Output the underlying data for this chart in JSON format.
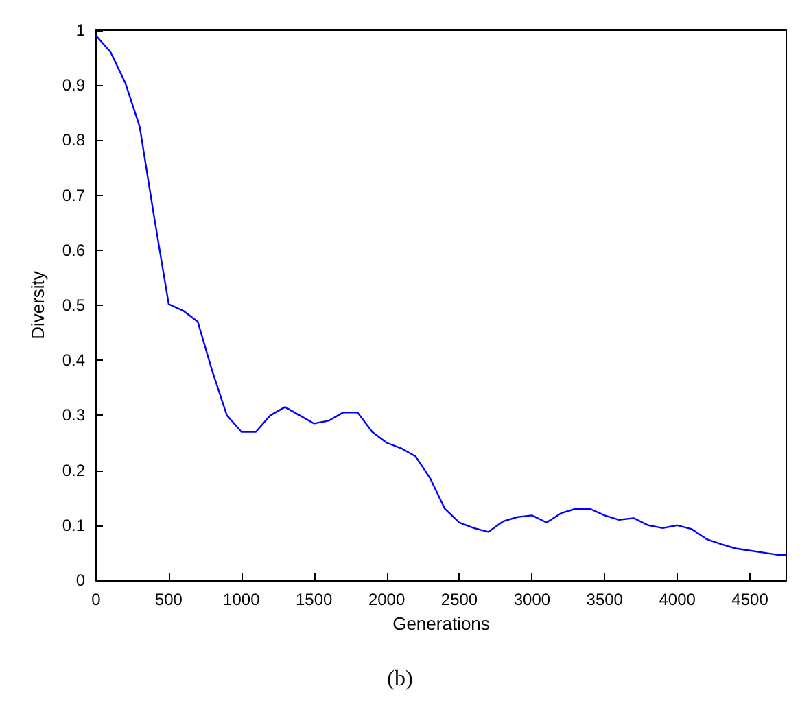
{
  "chart_data": {
    "type": "line",
    "xlabel": "Generations",
    "ylabel": "Diversity",
    "annotations": [
      "(b)"
    ],
    "x": [
      0,
      100,
      200,
      300,
      400,
      500,
      600,
      700,
      800,
      900,
      1000,
      1100,
      1200,
      1300,
      1400,
      1500,
      1600,
      1700,
      1800,
      1900,
      2000,
      2100,
      2200,
      2300,
      2400,
      2500,
      2600,
      2700,
      2800,
      2900,
      3000,
      3100,
      3200,
      3300,
      3400,
      3500,
      3600,
      3700,
      3800,
      3900,
      4000,
      4100,
      4200,
      4300,
      4400,
      4500,
      4600,
      4700,
      4750
    ],
    "series": [
      {
        "color": "#0000ff",
        "values": [
          0.99,
          0.96,
          0.905,
          0.825,
          0.66,
          0.502,
          0.49,
          0.47,
          0.38,
          0.3,
          0.27,
          0.27,
          0.3,
          0.315,
          0.3,
          0.285,
          0.29,
          0.305,
          0.305,
          0.27,
          0.25,
          0.24,
          0.225,
          0.185,
          0.13,
          0.105,
          0.095,
          0.088,
          0.107,
          0.115,
          0.118,
          0.105,
          0.122,
          0.13,
          0.13,
          0.118,
          0.11,
          0.113,
          0.1,
          0.095,
          0.1,
          0.093,
          0.075,
          0.066,
          0.058,
          0.054,
          0.05,
          0.046,
          0.046
        ]
      }
    ],
    "xlim": [
      0,
      4750
    ],
    "xticks": [
      0,
      500,
      1000,
      1500,
      2000,
      2500,
      3000,
      3500,
      4000,
      4500
    ],
    "ylim": [
      0,
      1
    ],
    "yticks": [
      0,
      0.1,
      0.2,
      0.3,
      0.4,
      0.5,
      0.6,
      0.7,
      0.8,
      0.9,
      1
    ],
    "marker": "none",
    "line_style": "solid"
  }
}
